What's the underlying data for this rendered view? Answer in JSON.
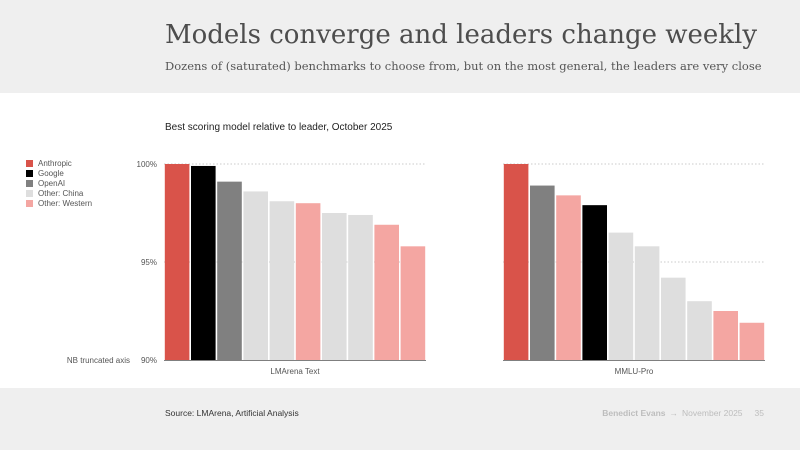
{
  "header": {
    "title": "Models converge and leaders change weekly",
    "subtitle": "Dozens of (saturated) benchmarks to choose from, but on the most general, the leaders are very close"
  },
  "chart_data": {
    "type": "bar",
    "title": "Best scoring model relative to leader, October 2025",
    "ylim": [
      90,
      100
    ],
    "y_ticks": [
      {
        "value": 100,
        "label": "100%"
      },
      {
        "value": 95,
        "label": "95%"
      },
      {
        "value": 90,
        "label": "90%"
      }
    ],
    "axis_note": "NB truncated axis",
    "grid": true,
    "legend_position": "left",
    "legend": [
      {
        "label": "Anthropic",
        "color": "#d9534a"
      },
      {
        "label": "Google",
        "color": "#000000"
      },
      {
        "label": "OpenAI",
        "color": "#808080"
      },
      {
        "label": "Other: China",
        "color": "#dedede"
      },
      {
        "label": "Other: Western",
        "color": "#f4a6a2"
      }
    ],
    "panels": [
      {
        "xlabel": "LMArena Text",
        "bars": [
          {
            "value": 100,
            "group": "Anthropic"
          },
          {
            "value": 99.9,
            "group": "Google"
          },
          {
            "value": 99.1,
            "group": "OpenAI"
          },
          {
            "value": 98.6,
            "group": "Other: China"
          },
          {
            "value": 98.1,
            "group": "Other: China"
          },
          {
            "value": 98.0,
            "group": "Other: Western"
          },
          {
            "value": 97.5,
            "group": "Other: China"
          },
          {
            "value": 97.4,
            "group": "Other: China"
          },
          {
            "value": 96.9,
            "group": "Other: Western"
          },
          {
            "value": 95.8,
            "group": "Other: Western"
          }
        ]
      },
      {
        "xlabel": "MMLU-Pro",
        "bars": [
          {
            "value": 100,
            "group": "Anthropic"
          },
          {
            "value": 98.9,
            "group": "OpenAI"
          },
          {
            "value": 98.4,
            "group": "Other: Western"
          },
          {
            "value": 97.9,
            "group": "Google"
          },
          {
            "value": 96.5,
            "group": "Other: China"
          },
          {
            "value": 95.8,
            "group": "Other: China"
          },
          {
            "value": 94.2,
            "group": "Other: China"
          },
          {
            "value": 93.0,
            "group": "Other: China"
          },
          {
            "value": 92.5,
            "group": "Other: Western"
          },
          {
            "value": 91.9,
            "group": "Other: Western"
          }
        ]
      }
    ]
  },
  "footer": {
    "source": "Source: LMArena, Artificial Analysis",
    "author": "Benedict Evans",
    "separator": "→",
    "date": "November 2025",
    "page": "35"
  }
}
